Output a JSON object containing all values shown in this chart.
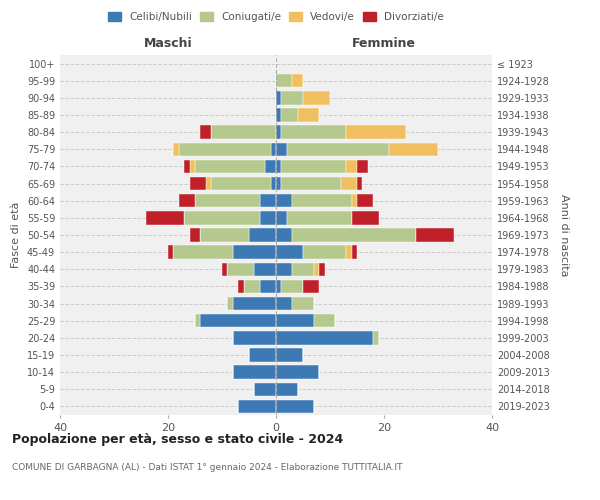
{
  "age_groups": [
    "0-4",
    "5-9",
    "10-14",
    "15-19",
    "20-24",
    "25-29",
    "30-34",
    "35-39",
    "40-44",
    "45-49",
    "50-54",
    "55-59",
    "60-64",
    "65-69",
    "70-74",
    "75-79",
    "80-84",
    "85-89",
    "90-94",
    "95-99",
    "100+"
  ],
  "birth_years": [
    "2019-2023",
    "2014-2018",
    "2009-2013",
    "2004-2008",
    "1999-2003",
    "1994-1998",
    "1989-1993",
    "1984-1988",
    "1979-1983",
    "1974-1978",
    "1969-1973",
    "1964-1968",
    "1959-1963",
    "1954-1958",
    "1949-1953",
    "1944-1948",
    "1939-1943",
    "1934-1938",
    "1929-1933",
    "1924-1928",
    "≤ 1923"
  ],
  "colors": {
    "celibi": "#3d7ab5",
    "coniugati": "#b5c98e",
    "vedovi": "#f0c060",
    "divorziati": "#c0202a"
  },
  "males": {
    "celibi": [
      7,
      4,
      8,
      5,
      8,
      14,
      8,
      3,
      4,
      8,
      5,
      3,
      3,
      1,
      2,
      1,
      0,
      0,
      0,
      0,
      0
    ],
    "coniugati": [
      0,
      0,
      0,
      0,
      0,
      1,
      1,
      3,
      5,
      11,
      9,
      14,
      12,
      11,
      13,
      17,
      12,
      0,
      0,
      0,
      0
    ],
    "vedovi": [
      0,
      0,
      0,
      0,
      0,
      0,
      0,
      0,
      0,
      0,
      0,
      0,
      0,
      1,
      1,
      1,
      0,
      0,
      0,
      0,
      0
    ],
    "divorziati": [
      0,
      0,
      0,
      0,
      0,
      0,
      0,
      1,
      1,
      1,
      2,
      7,
      3,
      3,
      1,
      0,
      2,
      0,
      0,
      0,
      0
    ]
  },
  "females": {
    "nubili": [
      7,
      4,
      8,
      5,
      18,
      7,
      3,
      1,
      3,
      5,
      3,
      2,
      3,
      1,
      1,
      2,
      1,
      1,
      1,
      0,
      0
    ],
    "coniugate": [
      0,
      0,
      0,
      0,
      1,
      4,
      4,
      4,
      4,
      8,
      23,
      12,
      11,
      11,
      12,
      19,
      12,
      3,
      4,
      3,
      0
    ],
    "vedove": [
      0,
      0,
      0,
      0,
      0,
      0,
      0,
      0,
      1,
      1,
      0,
      0,
      1,
      3,
      2,
      9,
      11,
      4,
      5,
      2,
      0
    ],
    "divorziate": [
      0,
      0,
      0,
      0,
      0,
      0,
      0,
      3,
      1,
      1,
      7,
      5,
      3,
      1,
      2,
      0,
      0,
      0,
      0,
      0,
      0
    ]
  },
  "title": "Popolazione per età, sesso e stato civile - 2024",
  "subtitle": "COMUNE DI GARBAGNA (AL) - Dati ISTAT 1° gennaio 2024 - Elaborazione TUTTITALIA.IT",
  "xlabel_left": "Maschi",
  "xlabel_right": "Femmine",
  "ylabel_left": "Fasce di età",
  "ylabel_right": "Anni di nascita",
  "xlim": 40,
  "legend_labels": [
    "Celibi/Nubili",
    "Coniugati/e",
    "Vedovi/e",
    "Divorziati/e"
  ],
  "bg_color": "#f0f0f0",
  "bar_edge_color": "white",
  "grid_color": "#cccccc"
}
